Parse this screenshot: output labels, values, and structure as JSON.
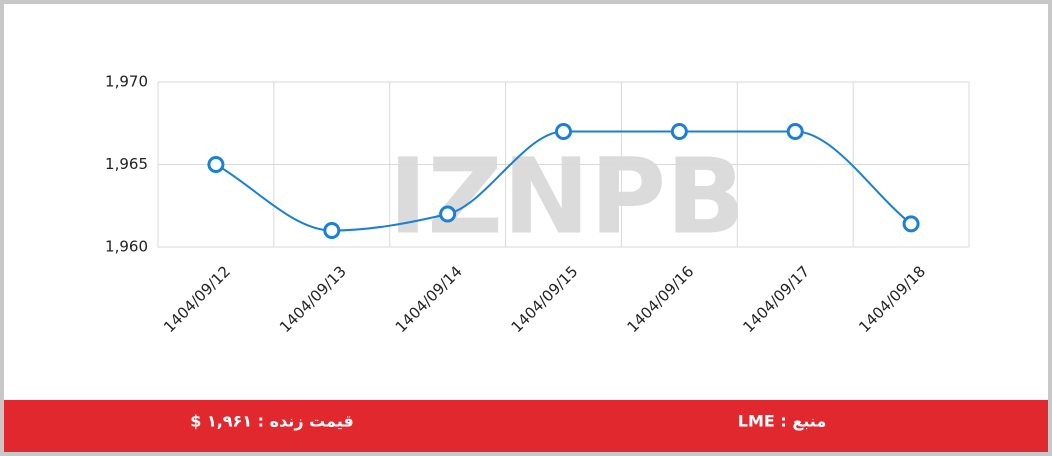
{
  "chart_data": {
    "type": "line",
    "watermark": "IZNPB",
    "categories": [
      "1404/09/12",
      "1404/09/13",
      "1404/09/14",
      "1404/09/15",
      "1404/09/16",
      "1404/09/17",
      "1404/09/18"
    ],
    "series": [
      {
        "color": "#1a7fd6",
        "values": [
          1965,
          1961,
          1962,
          1967,
          1967,
          1967,
          1961.4
        ]
      }
    ],
    "ylim": [
      1960,
      1970
    ],
    "yticks": [
      {
        "value": 1960,
        "label": "1,960"
      },
      {
        "value": 1965,
        "label": "1,965"
      },
      {
        "value": 1970,
        "label": "1,970"
      }
    ],
    "grid": true
  },
  "footer": {
    "price": "قیمت زنده : ۱,۹۶۱ $",
    "source": "منبع : LME"
  }
}
